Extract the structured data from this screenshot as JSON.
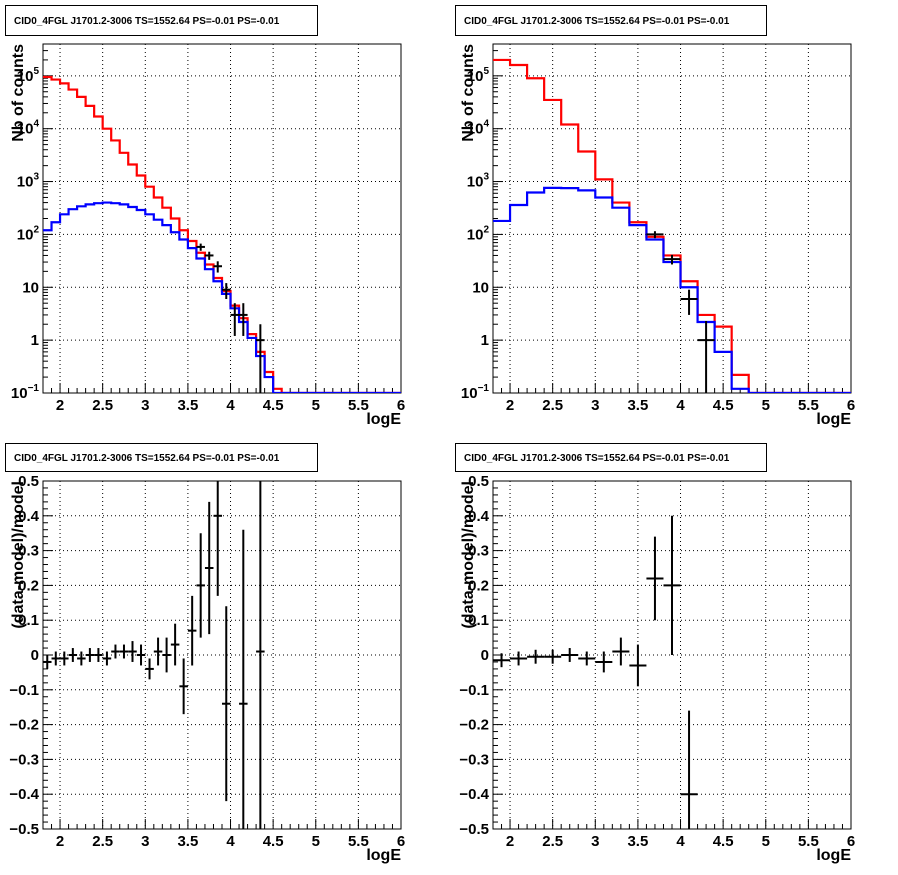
{
  "chart_data": [
    {
      "type": "line",
      "title": "CID0_4FGL J1701.2-3006 TS=1552.64 PS=-0.01 PS=-0.01",
      "xlabel": "logE",
      "ylabel": "Nb of counts",
      "xlim": [
        1.8,
        6.0
      ],
      "ylim": [
        0.1,
        400000
      ],
      "yscale": "log",
      "grid": true,
      "x_ticks": [
        "2",
        "2.5",
        "3",
        "3.5",
        "4",
        "4.5",
        "5",
        "5.5",
        "6"
      ],
      "y_ticks": [
        "10⁻¹",
        "1",
        "10",
        "10²",
        "10³",
        "10⁴",
        "10⁵"
      ],
      "bin_edges": [
        1.8,
        1.9,
        2.0,
        2.1,
        2.2,
        2.3,
        2.4,
        2.5,
        2.6,
        2.7,
        2.8,
        2.9,
        3.0,
        3.1,
        3.2,
        3.3,
        3.4,
        3.5,
        3.6,
        3.7,
        3.8,
        3.9,
        4.0,
        4.1,
        4.2,
        4.3,
        4.4,
        4.5,
        4.6,
        4.7,
        4.8,
        4.9,
        5.0,
        5.1,
        5.2,
        5.3,
        5.4,
        5.5,
        5.6,
        5.7,
        5.8,
        5.9,
        6.0
      ],
      "series": [
        {
          "color": "#ff0000",
          "style": "step",
          "values": [
            95000,
            85000,
            72000,
            55000,
            40000,
            27000,
            17000,
            10000,
            6000,
            3500,
            2100,
            1300,
            800,
            500,
            320,
            200,
            120,
            75,
            45,
            27,
            15,
            8.5,
            4.5,
            2.6,
            1.3,
            0.6,
            0.25,
            0.12,
            0.1,
            0.1,
            0.1,
            0.1,
            0.1,
            0.1,
            0.1,
            0.1,
            0.1,
            0.1,
            0.1,
            0.1,
            0.1,
            0.1
          ]
        },
        {
          "color": "#0000ff",
          "style": "step",
          "values": [
            120,
            170,
            240,
            300,
            340,
            370,
            390,
            400,
            390,
            370,
            330,
            290,
            240,
            190,
            150,
            110,
            80,
            55,
            35,
            22,
            13,
            7.5,
            4,
            2.2,
            1.1,
            0.5,
            0.2,
            0.1,
            0.1,
            0.1,
            0.1,
            0.1,
            0.1,
            0.1,
            0.1,
            0.1,
            0.1,
            0.1,
            0.1,
            0.1,
            0.1,
            0.1
          ]
        }
      ],
      "data_points": [
        {
          "x": 3.65,
          "y": 58,
          "yerr_lo": 9,
          "yerr_hi": 9
        },
        {
          "x": 3.75,
          "y": 40,
          "yerr_lo": 7,
          "yerr_hi": 7
        },
        {
          "x": 3.85,
          "y": 25,
          "yerr_lo": 6,
          "yerr_hi": 6
        },
        {
          "x": 3.95,
          "y": 9,
          "yerr_lo": 3,
          "yerr_hi": 3
        },
        {
          "x": 4.05,
          "y": 3,
          "yerr_lo": 1.8,
          "yerr_hi": 2
        },
        {
          "x": 4.15,
          "y": 3,
          "yerr_lo": 1.8,
          "yerr_hi": 2
        },
        {
          "x": 4.35,
          "y": 1,
          "yerr_lo": 0.9,
          "yerr_hi": 1
        }
      ]
    },
    {
      "type": "line",
      "title": "CID0_4FGL J1701.2-3006 TS=1552.64 PS=-0.01 PS=-0.01",
      "xlabel": "logE",
      "ylabel": "Nb of counts",
      "xlim": [
        1.8,
        6.0
      ],
      "ylim": [
        0.1,
        400000
      ],
      "yscale": "log",
      "grid": true,
      "x_ticks": [
        "2",
        "2.5",
        "3",
        "3.5",
        "4",
        "4.5",
        "5",
        "5.5",
        "6"
      ],
      "y_ticks": [
        "10⁻¹",
        "1",
        "10",
        "10²",
        "10³",
        "10⁴",
        "10⁵"
      ],
      "bin_edges": [
        1.8,
        2.0,
        2.2,
        2.4,
        2.6,
        2.8,
        3.0,
        3.2,
        3.4,
        3.6,
        3.8,
        4.0,
        4.2,
        4.4,
        4.6,
        4.8,
        5.0,
        5.2,
        5.4,
        5.6,
        5.8,
        6.0
      ],
      "series": [
        {
          "color": "#ff0000",
          "style": "step",
          "values": [
            200000,
            160000,
            90000,
            35000,
            12000,
            3700,
            1100,
            400,
            170,
            90,
            40,
            13,
            3,
            1.8,
            0.22,
            0.1,
            0.1,
            0.1,
            0.1,
            0.1,
            0.1
          ]
        },
        {
          "color": "#0000ff",
          "style": "step",
          "values": [
            180,
            360,
            620,
            760,
            750,
            680,
            500,
            320,
            150,
            80,
            30,
            10,
            2.2,
            0.6,
            0.12,
            0.1,
            0.1,
            0.1,
            0.1,
            0.1,
            0.1
          ]
        }
      ],
      "data_points": [
        {
          "x": 3.7,
          "y": 100,
          "yerr_lo": 15,
          "yerr_hi": 15
        },
        {
          "x": 3.9,
          "y": 34,
          "yerr_lo": 7,
          "yerr_hi": 7
        },
        {
          "x": 4.1,
          "y": 6,
          "yerr_lo": 3,
          "yerr_hi": 3
        },
        {
          "x": 4.3,
          "y": 1,
          "yerr_lo": 0.9,
          "yerr_hi": 1.3
        }
      ]
    },
    {
      "type": "scatter",
      "title": "CID0_4FGL J1701.2-3006 TS=1552.64 PS=-0.01 PS=-0.01",
      "xlabel": "logE",
      "ylabel": "(data-model)/model",
      "xlim": [
        1.8,
        6.0
      ],
      "ylim": [
        -0.5,
        0.5
      ],
      "grid": true,
      "x_ticks": [
        "2",
        "2.5",
        "3",
        "3.5",
        "4",
        "4.5",
        "5",
        "5.5",
        "6"
      ],
      "y_ticks": [
        "−0.5",
        "−0.4",
        "−0.3",
        "−0.2",
        "−0.1",
        "0",
        "0.1",
        "0.2",
        "0.3",
        "0.4",
        "0.5"
      ],
      "points": [
        {
          "x": 1.85,
          "y": -0.02,
          "xerr": 0.05,
          "yerr": 0.02
        },
        {
          "x": 1.95,
          "y": -0.01,
          "xerr": 0.05,
          "yerr": 0.02
        },
        {
          "x": 2.05,
          "y": -0.01,
          "xerr": 0.05,
          "yerr": 0.02
        },
        {
          "x": 2.15,
          "y": 0.0,
          "xerr": 0.05,
          "yerr": 0.02
        },
        {
          "x": 2.25,
          "y": -0.01,
          "xerr": 0.05,
          "yerr": 0.02
        },
        {
          "x": 2.35,
          "y": 0.0,
          "xerr": 0.05,
          "yerr": 0.02
        },
        {
          "x": 2.45,
          "y": 0.0,
          "xerr": 0.05,
          "yerr": 0.02
        },
        {
          "x": 2.55,
          "y": -0.01,
          "xerr": 0.05,
          "yerr": 0.02
        },
        {
          "x": 2.65,
          "y": 0.01,
          "xerr": 0.05,
          "yerr": 0.02
        },
        {
          "x": 2.75,
          "y": 0.01,
          "xerr": 0.05,
          "yerr": 0.02
        },
        {
          "x": 2.85,
          "y": 0.01,
          "xerr": 0.05,
          "yerr": 0.03
        },
        {
          "x": 2.95,
          "y": 0.0,
          "xerr": 0.05,
          "yerr": 0.03
        },
        {
          "x": 3.05,
          "y": -0.04,
          "xerr": 0.05,
          "yerr": 0.03
        },
        {
          "x": 3.15,
          "y": 0.01,
          "xerr": 0.05,
          "yerr": 0.04
        },
        {
          "x": 3.25,
          "y": 0.0,
          "xerr": 0.05,
          "yerr": 0.05
        },
        {
          "x": 3.35,
          "y": 0.03,
          "xerr": 0.05,
          "yerr": 0.06
        },
        {
          "x": 3.45,
          "y": -0.09,
          "xerr": 0.05,
          "yerr": 0.08
        },
        {
          "x": 3.55,
          "y": 0.07,
          "xerr": 0.05,
          "yerr": 0.1
        },
        {
          "x": 3.65,
          "y": 0.2,
          "xerr": 0.05,
          "yerr": 0.15
        },
        {
          "x": 3.75,
          "y": 0.25,
          "xerr": 0.05,
          "yerr": 0.19
        },
        {
          "x": 3.85,
          "y": 0.4,
          "xerr": 0.05,
          "yerr": 0.23
        },
        {
          "x": 3.95,
          "y": -0.14,
          "xerr": 0.05,
          "yerr": 0.28
        },
        {
          "x": 4.15,
          "y": -0.14,
          "xerr": 0.05,
          "yerr": 0.5
        },
        {
          "x": 4.35,
          "y": 0.01,
          "xerr": 0.05,
          "yerr": 0.7
        }
      ]
    },
    {
      "type": "scatter",
      "title": "CID0_4FGL J1701.2-3006 TS=1552.64 PS=-0.01 PS=-0.01",
      "xlabel": "logE",
      "ylabel": "(data-model)/model",
      "xlim": [
        1.8,
        6.0
      ],
      "ylim": [
        -0.5,
        0.5
      ],
      "grid": true,
      "x_ticks": [
        "2",
        "2.5",
        "3",
        "3.5",
        "4",
        "4.5",
        "5",
        "5.5",
        "6"
      ],
      "y_ticks": [
        "−0.5",
        "−0.4",
        "−0.3",
        "−0.2",
        "−0.1",
        "0",
        "0.1",
        "0.2",
        "0.3",
        "0.4",
        "0.5"
      ],
      "points": [
        {
          "x": 1.9,
          "y": -0.015,
          "xerr": 0.1,
          "yerr": 0.02
        },
        {
          "x": 2.1,
          "y": -0.01,
          "xerr": 0.1,
          "yerr": 0.02
        },
        {
          "x": 2.3,
          "y": -0.005,
          "xerr": 0.1,
          "yerr": 0.02
        },
        {
          "x": 2.5,
          "y": -0.005,
          "xerr": 0.1,
          "yerr": 0.02
        },
        {
          "x": 2.7,
          "y": 0.0,
          "xerr": 0.1,
          "yerr": 0.02
        },
        {
          "x": 2.9,
          "y": -0.01,
          "xerr": 0.1,
          "yerr": 0.02
        },
        {
          "x": 3.1,
          "y": -0.02,
          "xerr": 0.1,
          "yerr": 0.03
        },
        {
          "x": 3.3,
          "y": 0.01,
          "xerr": 0.1,
          "yerr": 0.04
        },
        {
          "x": 3.5,
          "y": -0.03,
          "xerr": 0.1,
          "yerr": 0.06
        },
        {
          "x": 3.7,
          "y": 0.22,
          "xerr": 0.1,
          "yerr": 0.12
        },
        {
          "x": 3.9,
          "y": 0.2,
          "xerr": 0.1,
          "yerr": 0.2
        },
        {
          "x": 4.1,
          "y": -0.4,
          "xerr": 0.1,
          "yerr": 0.24
        }
      ]
    }
  ]
}
